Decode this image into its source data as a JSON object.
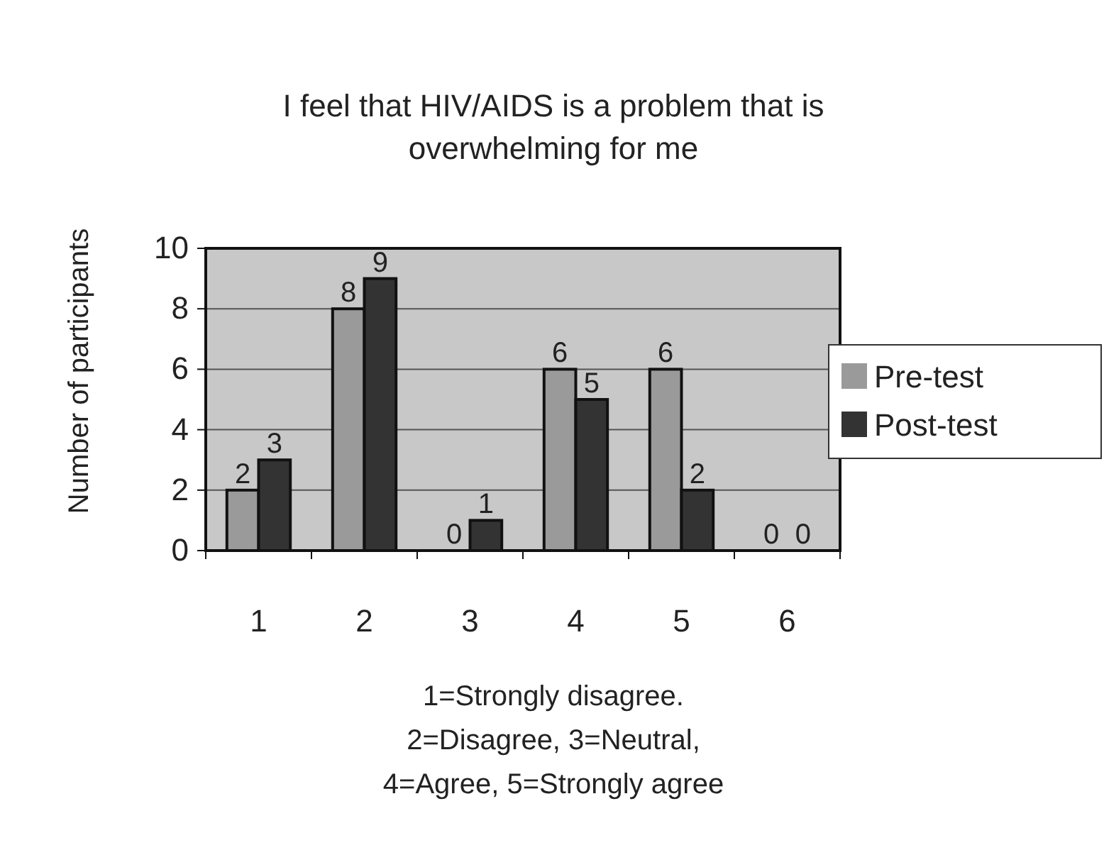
{
  "chart_data": {
    "type": "bar",
    "title": "I feel that HIV/AIDS is a problem that is\noverwhelming for me",
    "xlabel": "1=Strongly disagree.\n2=Disagree, 3=Neutral,\n4=Agree, 5=Strongly agree",
    "ylabel": "Number of participants",
    "categories": [
      "1",
      "2",
      "3",
      "4",
      "5",
      "6"
    ],
    "series": [
      {
        "name": "Pre-test",
        "color": "#9a9a9a",
        "values": [
          2,
          8,
          0,
          6,
          6,
          0
        ]
      },
      {
        "name": "Post-test",
        "color": "#333333",
        "values": [
          3,
          9,
          1,
          5,
          2,
          0
        ]
      }
    ],
    "ylim": [
      0,
      10
    ],
    "yticks": [
      0,
      2,
      4,
      6,
      8,
      10
    ],
    "grid": "y",
    "legend": "right",
    "data_labels": true
  }
}
